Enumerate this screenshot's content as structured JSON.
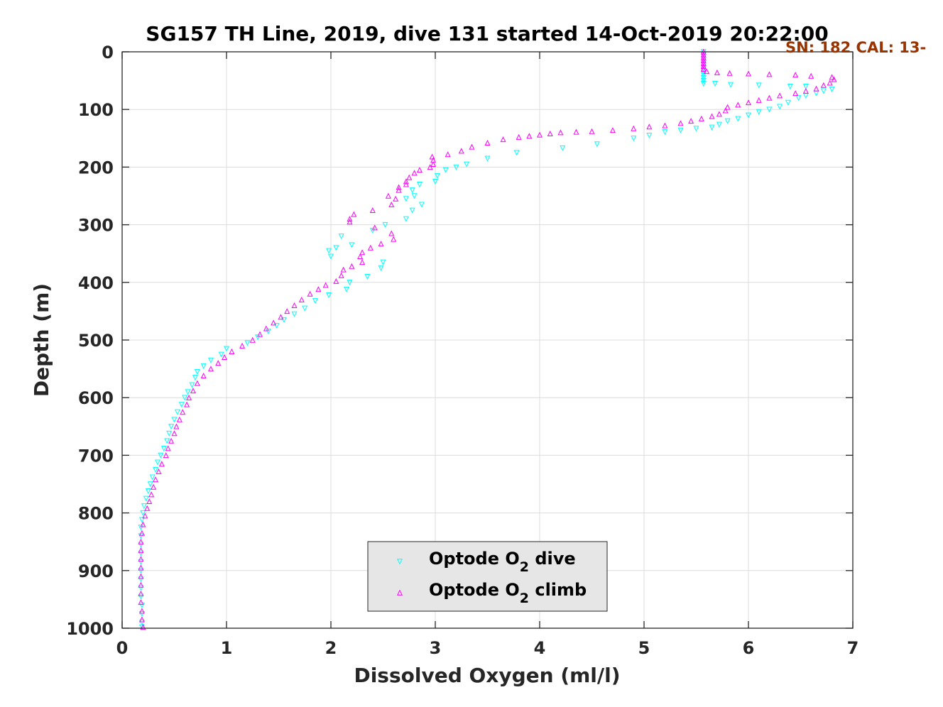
{
  "chart_data": {
    "type": "scatter",
    "title": "SG157 TH Line, 2019, dive 131 started 14-Oct-2019 20:22:00",
    "annotation": "SN: 182  CAL: 13-",
    "annotation_color": "#993300",
    "xlabel": "Dissolved Oxygen (ml/l)",
    "ylabel": "Depth (m)",
    "xlim": [
      0,
      7
    ],
    "ylim": [
      0,
      1000
    ],
    "y_reversed": true,
    "grid": true,
    "xticks": [
      "0",
      "1",
      "2",
      "3",
      "4",
      "5",
      "6",
      "7"
    ],
    "yticks": [
      "0",
      "100",
      "200",
      "300",
      "400",
      "500",
      "600",
      "700",
      "800",
      "900",
      "1000"
    ],
    "legend": {
      "position": "bottom-center",
      "entries": [
        {
          "prefix": "Optode O",
          "sub": "2",
          "suffix": " dive"
        },
        {
          "prefix": "Optode O",
          "sub": "2",
          "suffix": " climb"
        }
      ]
    },
    "series": [
      {
        "label": "dive",
        "color": "#00ffff",
        "marker": "triangle-down",
        "points": [
          [
            5.57,
            0
          ],
          [
            5.57,
            5
          ],
          [
            5.57,
            10
          ],
          [
            5.57,
            15
          ],
          [
            5.57,
            20
          ],
          [
            5.57,
            25
          ],
          [
            5.57,
            30
          ],
          [
            5.57,
            35
          ],
          [
            5.57,
            40
          ],
          [
            5.57,
            45
          ],
          [
            5.57,
            50
          ],
          [
            5.57,
            55
          ],
          [
            5.68,
            55
          ],
          [
            5.83,
            57
          ],
          [
            6.1,
            58
          ],
          [
            6.4,
            60
          ],
          [
            6.55,
            60
          ],
          [
            6.8,
            65
          ],
          [
            6.72,
            68
          ],
          [
            6.65,
            72
          ],
          [
            6.55,
            76
          ],
          [
            6.48,
            80
          ],
          [
            6.38,
            88
          ],
          [
            6.3,
            95
          ],
          [
            6.2,
            100
          ],
          [
            6.1,
            104
          ],
          [
            6.0,
            110
          ],
          [
            5.9,
            116
          ],
          [
            5.8,
            120
          ],
          [
            5.72,
            126
          ],
          [
            5.65,
            131
          ],
          [
            5.5,
            133
          ],
          [
            5.35,
            136
          ],
          [
            5.2,
            139
          ],
          [
            5.05,
            145
          ],
          [
            4.9,
            150
          ],
          [
            4.55,
            160
          ],
          [
            4.22,
            167
          ],
          [
            3.78,
            175
          ],
          [
            3.5,
            185
          ],
          [
            3.3,
            195
          ],
          [
            3.2,
            200
          ],
          [
            3.1,
            205
          ],
          [
            3.02,
            215
          ],
          [
            3.0,
            225
          ],
          [
            2.85,
            230
          ],
          [
            2.78,
            240
          ],
          [
            2.8,
            250
          ],
          [
            2.72,
            255
          ],
          [
            2.87,
            265
          ],
          [
            2.78,
            275
          ],
          [
            2.72,
            290
          ],
          [
            2.52,
            300
          ],
          [
            2.4,
            310
          ],
          [
            2.1,
            320
          ],
          [
            2.2,
            335
          ],
          [
            2.05,
            340
          ],
          [
            1.98,
            345
          ],
          [
            2.0,
            355
          ],
          [
            2.5,
            365
          ],
          [
            2.48,
            375
          ],
          [
            2.35,
            390
          ],
          [
            2.18,
            400
          ],
          [
            2.15,
            412
          ],
          [
            1.98,
            422
          ],
          [
            1.85,
            432
          ],
          [
            1.75,
            445
          ],
          [
            1.65,
            455
          ],
          [
            1.55,
            465
          ],
          [
            1.48,
            475
          ],
          [
            1.4,
            485
          ],
          [
            1.3,
            495
          ],
          [
            1.2,
            505
          ],
          [
            1.0,
            515
          ],
          [
            0.95,
            525
          ],
          [
            0.85,
            535
          ],
          [
            0.78,
            545
          ],
          [
            0.72,
            555
          ],
          [
            0.7,
            565
          ],
          [
            0.67,
            578
          ],
          [
            0.63,
            590
          ],
          [
            0.6,
            600
          ],
          [
            0.57,
            612
          ],
          [
            0.53,
            625
          ],
          [
            0.5,
            638
          ],
          [
            0.47,
            650
          ],
          [
            0.45,
            662
          ],
          [
            0.43,
            675
          ],
          [
            0.4,
            688
          ],
          [
            0.37,
            700
          ],
          [
            0.34,
            712
          ],
          [
            0.32,
            725
          ],
          [
            0.29,
            738
          ],
          [
            0.27,
            750
          ],
          [
            0.25,
            762
          ],
          [
            0.23,
            775
          ],
          [
            0.21,
            788
          ],
          [
            0.2,
            800
          ],
          [
            0.19,
            812
          ],
          [
            0.18,
            825
          ],
          [
            0.18,
            840
          ],
          [
            0.18,
            855
          ],
          [
            0.18,
            870
          ],
          [
            0.18,
            885
          ],
          [
            0.18,
            900
          ],
          [
            0.18,
            915
          ],
          [
            0.18,
            930
          ],
          [
            0.18,
            945
          ],
          [
            0.19,
            960
          ],
          [
            0.19,
            975
          ],
          [
            0.19,
            990
          ],
          [
            0.19,
            998
          ]
        ]
      },
      {
        "label": "climb",
        "color": "#ff00ff",
        "marker": "triangle-up",
        "points": [
          [
            0.2,
            998
          ],
          [
            0.19,
            985
          ],
          [
            0.19,
            970
          ],
          [
            0.18,
            955
          ],
          [
            0.18,
            940
          ],
          [
            0.18,
            925
          ],
          [
            0.18,
            910
          ],
          [
            0.18,
            895
          ],
          [
            0.18,
            880
          ],
          [
            0.18,
            865
          ],
          [
            0.18,
            850
          ],
          [
            0.19,
            835
          ],
          [
            0.2,
            820
          ],
          [
            0.22,
            805
          ],
          [
            0.24,
            792
          ],
          [
            0.26,
            780
          ],
          [
            0.28,
            768
          ],
          [
            0.3,
            755
          ],
          [
            0.32,
            742
          ],
          [
            0.35,
            728
          ],
          [
            0.38,
            715
          ],
          [
            0.42,
            700
          ],
          [
            0.44,
            688
          ],
          [
            0.47,
            675
          ],
          [
            0.5,
            662
          ],
          [
            0.52,
            650
          ],
          [
            0.55,
            638
          ],
          [
            0.58,
            625
          ],
          [
            0.62,
            612
          ],
          [
            0.64,
            600
          ],
          [
            0.68,
            588
          ],
          [
            0.72,
            575
          ],
          [
            0.78,
            562
          ],
          [
            0.85,
            550
          ],
          [
            0.92,
            540
          ],
          [
            0.98,
            530
          ],
          [
            1.05,
            520
          ],
          [
            1.15,
            510
          ],
          [
            1.25,
            500
          ],
          [
            1.32,
            490
          ],
          [
            1.38,
            480
          ],
          [
            1.45,
            470
          ],
          [
            1.52,
            460
          ],
          [
            1.58,
            450
          ],
          [
            1.65,
            440
          ],
          [
            1.72,
            430
          ],
          [
            1.8,
            420
          ],
          [
            1.88,
            412
          ],
          [
            1.95,
            405
          ],
          [
            2.05,
            398
          ],
          [
            2.1,
            388
          ],
          [
            2.12,
            378
          ],
          [
            2.2,
            372
          ],
          [
            2.3,
            365
          ],
          [
            2.28,
            355
          ],
          [
            2.3,
            348
          ],
          [
            2.38,
            340
          ],
          [
            2.48,
            333
          ],
          [
            2.6,
            325
          ],
          [
            2.58,
            315
          ],
          [
            2.42,
            305
          ],
          [
            2.18,
            290
          ],
          [
            2.18,
            295
          ],
          [
            2.22,
            282
          ],
          [
            2.4,
            275
          ],
          [
            2.58,
            265
          ],
          [
            2.62,
            255
          ],
          [
            2.55,
            250
          ],
          [
            2.65,
            240
          ],
          [
            2.65,
            235
          ],
          [
            2.72,
            230
          ],
          [
            2.72,
            225
          ],
          [
            2.75,
            218
          ],
          [
            2.8,
            210
          ],
          [
            2.85,
            205
          ],
          [
            2.95,
            200
          ],
          [
            2.98,
            195
          ],
          [
            2.98,
            188
          ],
          [
            2.97,
            182
          ],
          [
            3.12,
            178
          ],
          [
            3.25,
            172
          ],
          [
            3.35,
            165
          ],
          [
            3.5,
            158
          ],
          [
            3.65,
            152
          ],
          [
            3.8,
            148
          ],
          [
            3.9,
            146
          ],
          [
            4.0,
            144
          ],
          [
            4.1,
            142
          ],
          [
            4.2,
            140
          ],
          [
            4.35,
            139
          ],
          [
            4.5,
            138
          ],
          [
            4.7,
            136
          ],
          [
            4.9,
            133
          ],
          [
            5.05,
            130
          ],
          [
            5.2,
            128
          ],
          [
            5.35,
            124
          ],
          [
            5.45,
            120
          ],
          [
            5.55,
            116
          ],
          [
            5.65,
            112
          ],
          [
            5.72,
            108
          ],
          [
            5.78,
            102
          ],
          [
            5.8,
            96
          ],
          [
            5.9,
            92
          ],
          [
            6.0,
            88
          ],
          [
            6.1,
            84
          ],
          [
            6.2,
            80
          ],
          [
            6.3,
            76
          ],
          [
            6.45,
            72
          ],
          [
            6.55,
            68
          ],
          [
            6.65,
            64
          ],
          [
            6.72,
            58
          ],
          [
            6.78,
            54
          ],
          [
            6.82,
            48
          ],
          [
            6.8,
            44
          ],
          [
            6.6,
            42
          ],
          [
            6.45,
            40
          ],
          [
            6.2,
            39
          ],
          [
            6.0,
            38
          ],
          [
            5.82,
            37
          ],
          [
            5.7,
            36
          ],
          [
            5.6,
            34
          ],
          [
            5.57,
            30
          ],
          [
            5.57,
            25
          ],
          [
            5.57,
            20
          ],
          [
            5.57,
            15
          ],
          [
            5.57,
            10
          ],
          [
            5.57,
            5
          ],
          [
            5.57,
            0
          ]
        ]
      }
    ]
  }
}
